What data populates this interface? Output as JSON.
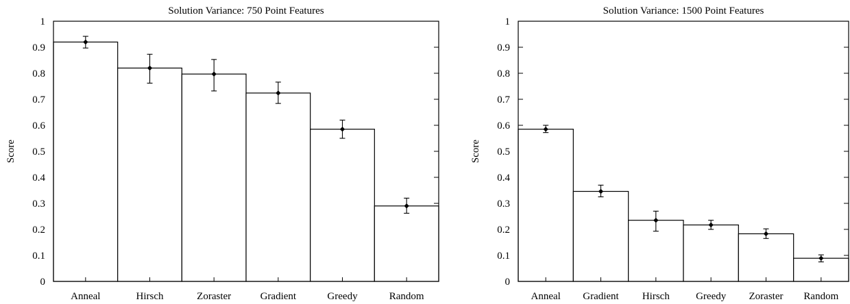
{
  "chart_data": [
    {
      "type": "bar",
      "title": "Solution Variance: 750 Point Features",
      "xlabel": "",
      "ylabel": "Score",
      "ylim": [
        0,
        1
      ],
      "yticks": [
        "0",
        "0.1",
        "0.2",
        "0.3",
        "0.4",
        "0.5",
        "0.6",
        "0.7",
        "0.8",
        "0.9",
        "1"
      ],
      "categories": [
        "Anneal",
        "Hirsch",
        "Zoraster",
        "Gradient",
        "Greedy",
        "Random"
      ],
      "values": [
        0.92,
        0.82,
        0.797,
        0.724,
        0.585,
        0.29
      ],
      "error_low": [
        0.897,
        0.762,
        0.732,
        0.684,
        0.55,
        0.262
      ],
      "error_high": [
        0.942,
        0.873,
        0.853,
        0.766,
        0.62,
        0.32
      ],
      "grid": false,
      "legend": "none",
      "bar_color": "#ffffff",
      "edge_color": "#000000"
    },
    {
      "type": "bar",
      "title": "Solution Variance: 1500 Point Features",
      "xlabel": "",
      "ylabel": "Score",
      "ylim": [
        0,
        1
      ],
      "yticks": [
        "0",
        "0.1",
        "0.2",
        "0.3",
        "0.4",
        "0.5",
        "0.6",
        "0.7",
        "0.8",
        "0.9",
        "1"
      ],
      "categories": [
        "Anneal",
        "Gradient",
        "Hirsch",
        "Greedy",
        "Zoraster",
        "Random"
      ],
      "values": [
        0.585,
        0.346,
        0.235,
        0.217,
        0.183,
        0.089
      ],
      "error_low": [
        0.572,
        0.325,
        0.193,
        0.2,
        0.165,
        0.075
      ],
      "error_high": [
        0.6,
        0.37,
        0.27,
        0.235,
        0.202,
        0.102
      ],
      "grid": false,
      "legend": "none",
      "bar_color": "#ffffff",
      "edge_color": "#000000"
    }
  ]
}
